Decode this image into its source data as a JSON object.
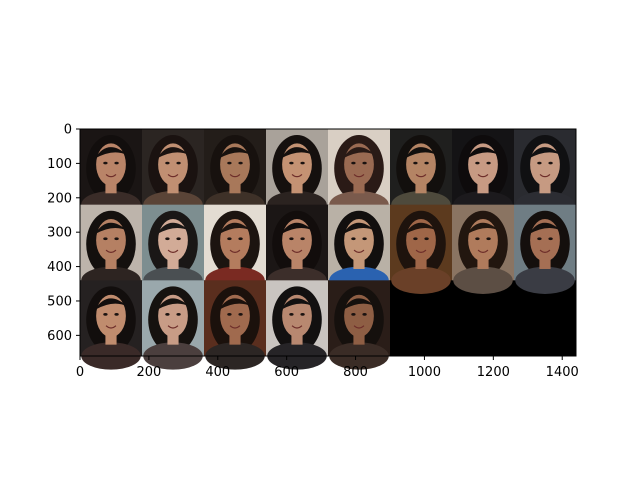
{
  "chart_data": {
    "type": "image",
    "title": "",
    "xlabel": "",
    "ylabel": "",
    "xlim": [
      0,
      1440
    ],
    "ylim": [
      660,
      0
    ],
    "x_ticks": [
      {
        "value": 0,
        "label": "0"
      },
      {
        "value": 200,
        "label": "200"
      },
      {
        "value": 400,
        "label": "400"
      },
      {
        "value": 600,
        "label": "600"
      },
      {
        "value": 800,
        "label": "800"
      },
      {
        "value": 1000,
        "label": "1000"
      },
      {
        "value": 1200,
        "label": "1200"
      },
      {
        "value": 1400,
        "label": "1400"
      }
    ],
    "y_ticks": [
      {
        "value": 0,
        "label": "0"
      },
      {
        "value": 100,
        "label": "100"
      },
      {
        "value": 200,
        "label": "200"
      },
      {
        "value": 300,
        "label": "300"
      },
      {
        "value": 400,
        "label": "400"
      },
      {
        "value": 500,
        "label": "500"
      },
      {
        "value": 600,
        "label": "600"
      }
    ],
    "grid": false,
    "legend": "none",
    "image_grid": {
      "rows": 3,
      "cols": 8,
      "cell_width": 180,
      "cell_height": 220,
      "filled_cells": 21,
      "empty_color": "#000000",
      "cells": [
        {
          "bg": "#1a1514",
          "hair": "#120e0d",
          "skin": "#b98468",
          "shirt": "#3a2c28"
        },
        {
          "bg": "#2b2522",
          "hair": "#1a1210",
          "skin": "#c08f72",
          "shirt": "#5a4437"
        },
        {
          "bg": "#231d19",
          "hair": "#17110e",
          "skin": "#a8785a",
          "shirt": "#3e3128"
        },
        {
          "bg": "#a9a29a",
          "hair": "#15100e",
          "skin": "#c49273",
          "shirt": "#2b2320"
        },
        {
          "bg": "#d9cfc4",
          "hair": "#2a1a16",
          "skin": "#9a6a52",
          "shirt": "#7a5a4c"
        },
        {
          "bg": "#1f1f1e",
          "hair": "#120f0d",
          "skin": "#b48464",
          "shirt": "#4e4a3c"
        },
        {
          "bg": "#141315",
          "hair": "#0e0b0c",
          "skin": "#c79a83",
          "shirt": "#1c1a1d"
        },
        {
          "bg": "#2a2b30",
          "hair": "#101012",
          "skin": "#c69a82",
          "shirt": "#2c2d33"
        },
        {
          "bg": "#bdb4ab",
          "hair": "#14100e",
          "skin": "#b58063",
          "shirt": "#2d2421"
        },
        {
          "bg": "#7d8e90",
          "hair": "#1a1716",
          "skin": "#d2ab97",
          "shirt": "#4a4f52"
        },
        {
          "bg": "#e3dcd2",
          "hair": "#1c1410",
          "skin": "#b47c5e",
          "shirt": "#7a2a22"
        },
        {
          "bg": "#1b1615",
          "hair": "#120d0c",
          "skin": "#b98468",
          "shirt": "#3c2e2a"
        },
        {
          "bg": "#b9b1a6",
          "hair": "#120f0e",
          "skin": "#c49778",
          "shirt": "#2a62b0"
        },
        {
          "bg": "#5c3a1e",
          "hair": "#1e130d",
          "skin": "#9f6648",
          "shirt": "#6a4028"
        },
        {
          "bg": "#8a7462",
          "hair": "#22160f",
          "skin": "#b07b5c",
          "shirt": "#5c4e44"
        },
        {
          "bg": "#6f7d84",
          "hair": "#140f0d",
          "skin": "#a56f54",
          "shirt": "#3a3c44"
        },
        {
          "bg": "#252121",
          "hair": "#120e0d",
          "skin": "#c08c6e",
          "shirt": "#3a2a28"
        },
        {
          "bg": "#9aa8ac",
          "hair": "#16120f",
          "skin": "#c89c86",
          "shirt": "#4b3f3e"
        },
        {
          "bg": "#5a2e1e",
          "hair": "#1b110c",
          "skin": "#a06a4e",
          "shirt": "#2c2624"
        },
        {
          "bg": "#c9c4c0",
          "hair": "#121010",
          "skin": "#b88870",
          "shirt": "#262427"
        },
        {
          "bg": "#2a1d18",
          "hair": "#15100d",
          "skin": "#8e5e44",
          "shirt": "#3a2c26"
        }
      ]
    }
  }
}
